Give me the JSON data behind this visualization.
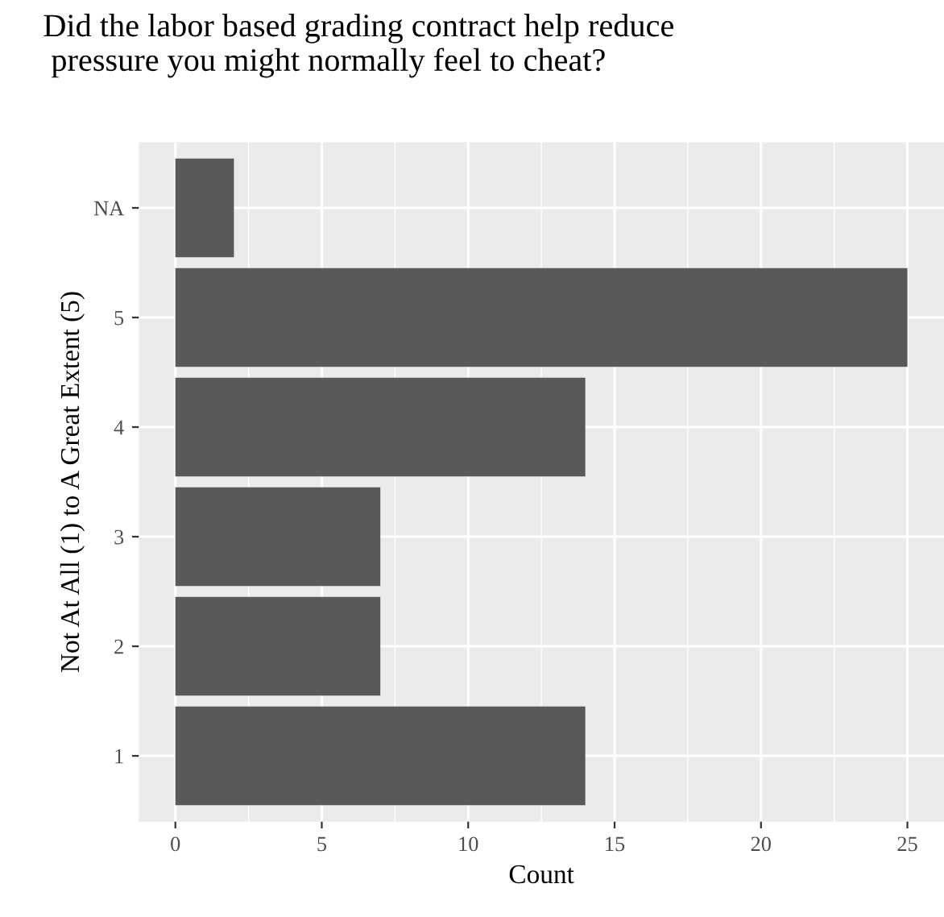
{
  "chart_data": {
    "type": "bar",
    "orientation": "horizontal",
    "title": "Did the labor based grading contract help reduce\n pressure you might normally feel to cheat?",
    "xlabel": "Count",
    "ylabel": "Not At All (1) to A Great Extent (5)",
    "categories": [
      "NA",
      "5",
      "4",
      "3",
      "2",
      "1"
    ],
    "values": [
      2,
      25,
      14,
      7,
      7,
      14
    ],
    "color": "#595959",
    "xlim": [
      -1.25,
      26.25
    ],
    "xticks": [
      0,
      5,
      10,
      15,
      20,
      25
    ],
    "grid": true
  }
}
